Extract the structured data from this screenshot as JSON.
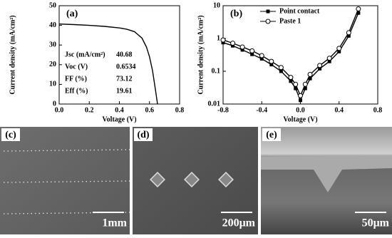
{
  "chart_data": [
    {
      "type": "line",
      "panel_label": "(a)",
      "x_label": "Voltage (V)",
      "y_label": "Current density (mA/cm²)",
      "x": [
        0,
        0.1,
        0.2,
        0.3,
        0.4,
        0.45,
        0.5,
        0.55,
        0.58,
        0.6,
        0.62,
        0.64,
        0.6534
      ],
      "series": [
        {
          "color": "#000000",
          "values": [
            40.7,
            40.4,
            40.0,
            39.5,
            38.7,
            38.0,
            36.8,
            33.5,
            29,
            24,
            17,
            7,
            0
          ]
        }
      ],
      "xlim": [
        0,
        0.8
      ],
      "xticks": [
        {
          "value": 0,
          "label": "0.0"
        },
        0.2,
        0.4,
        0.6,
        0.8
      ],
      "ylim": [
        0,
        50
      ],
      "yticks": [
        0,
        10,
        20,
        30,
        40,
        50
      ],
      "inset_table": [
        {
          "label": "Jsc (mA/cm²)",
          "value": "40.68"
        },
        {
          "label": "Voc (V)",
          "value": "0.6534"
        },
        {
          "label": "FF (%)",
          "value": "73.12"
        },
        {
          "label": "Eff (%)",
          "value": "19.61"
        }
      ]
    },
    {
      "type": "line",
      "panel_label": "(b)",
      "x_label": "Voltage (V)",
      "y_label": "Current density (mA/cm²)",
      "log_y": true,
      "legend": "top-right",
      "x": [
        -0.8,
        -0.7,
        -0.6,
        -0.5,
        -0.4,
        -0.3,
        -0.2,
        -0.1,
        -0.05,
        0,
        0.05,
        0.1,
        0.2,
        0.3,
        0.4,
        0.5,
        0.6
      ],
      "series": [
        {
          "name": "Point contact",
          "color": "#000000",
          "marker": "filled-square",
          "values": [
            0.75,
            0.6,
            0.45,
            0.33,
            0.24,
            0.16,
            0.1,
            0.05,
            0.03,
            0.013,
            0.03,
            0.06,
            0.12,
            0.2,
            0.4,
            1.2,
            6
          ]
        },
        {
          "name": "Paste 1",
          "color": "#000000",
          "marker": "open-circle",
          "values": [
            0.9,
            0.72,
            0.55,
            0.42,
            0.3,
            0.2,
            0.13,
            0.065,
            0.04,
            0.018,
            0.04,
            0.08,
            0.15,
            0.25,
            0.5,
            1.5,
            8
          ]
        }
      ],
      "xlim": [
        -0.8,
        0.8
      ],
      "xticks": [
        -0.8,
        -0.4,
        {
          "value": 0,
          "label": "0.0"
        },
        0.4,
        0.8
      ],
      "ylim": [
        0.01,
        10
      ],
      "yticks": [
        0.01,
        0.1,
        1,
        10
      ]
    }
  ],
  "images": [
    {
      "panel_label": "(c)",
      "scale_bar": "1mm"
    },
    {
      "panel_label": "(d)",
      "scale_bar": "200μm"
    },
    {
      "panel_label": "(e)",
      "scale_bar": "50μm"
    }
  ]
}
